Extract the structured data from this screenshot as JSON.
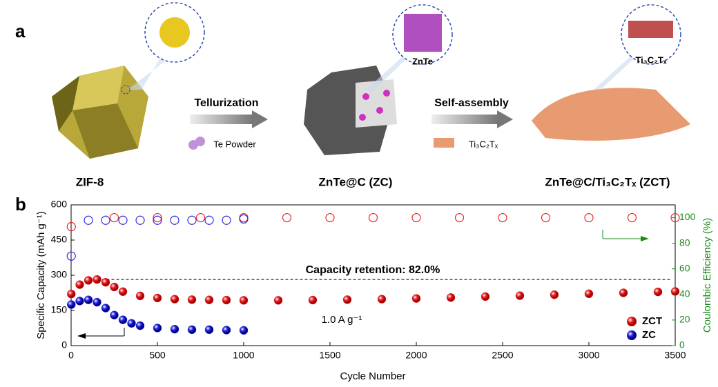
{
  "panels": {
    "a": "a",
    "b": "b"
  },
  "schematic": {
    "step1": "ZIF-8",
    "step2": "ZnTe@C (ZC)",
    "step3": "ZnTe@C/Ti₃C₂Tₓ (ZCT)",
    "arrow1": "Tellurization",
    "reagent1": "Te Powder",
    "arrow2": "Self-assembly",
    "reagent2": "Ti₃C₂Tₓ",
    "inset2": "ZnTe",
    "inset3": "Ti₃C₂Tₓ"
  },
  "chart_data": {
    "type": "scatter",
    "xlabel": "Cycle Number",
    "ylabel": "Specific Capacity (mAh g⁻¹)",
    "y2label": "Coulombic Efficiency (%)",
    "annotations": [
      "Capacity retention: 82.0%",
      "1.0 A g⁻¹"
    ],
    "xlim": [
      0,
      3500
    ],
    "xticks": [
      0,
      500,
      1000,
      1500,
      2000,
      2500,
      3000,
      3500
    ],
    "ylim": [
      0,
      600
    ],
    "yticks": [
      0,
      150,
      300,
      450,
      600
    ],
    "y2lim": [
      0,
      110
    ],
    "y2ticks": [
      0,
      20,
      40,
      60,
      80,
      100
    ],
    "legend": "lower right",
    "series": [
      {
        "name": "ZCT",
        "color": "#e8262a",
        "x": [
          1,
          50,
          100,
          150,
          200,
          250,
          300,
          400,
          500,
          600,
          700,
          800,
          900,
          1000,
          1200,
          1400,
          1600,
          1800,
          2000,
          2200,
          2400,
          2600,
          2800,
          3000,
          3200,
          3400,
          3500
        ],
        "values": [
          220,
          260,
          278,
          282,
          270,
          250,
          230,
          212,
          203,
          198,
          196,
          195,
          194,
          193,
          193,
          194,
          196,
          198,
          201,
          205,
          209,
          213,
          217,
          221,
          225,
          229,
          231
        ]
      },
      {
        "name": "ZC",
        "color": "#2a2ae0",
        "x": [
          1,
          50,
          100,
          150,
          200,
          250,
          300,
          350,
          400,
          500,
          600,
          700,
          800,
          900,
          1000
        ],
        "values": [
          175,
          190,
          195,
          185,
          160,
          130,
          110,
          95,
          85,
          75,
          70,
          68,
          68,
          66,
          65
        ]
      },
      {
        "color": "#e8262a",
        "axis": "y2",
        "x": [
          1,
          250,
          500,
          750,
          1000,
          1250,
          1500,
          1750,
          2000,
          2250,
          2500,
          2750,
          3000,
          3250,
          3500
        ],
        "values": [
          93,
          100,
          100,
          100,
          100,
          100,
          100,
          100,
          100,
          100,
          100,
          100,
          100,
          100,
          100
        ]
      },
      {
        "color": "#2a2ae0",
        "axis": "y2",
        "x": [
          1,
          100,
          200,
          300,
          400,
          500,
          600,
          700,
          800,
          900,
          1000
        ],
        "values": [
          70,
          98,
          98,
          98,
          98,
          98,
          98,
          98,
          98,
          98,
          99
        ]
      }
    ]
  }
}
